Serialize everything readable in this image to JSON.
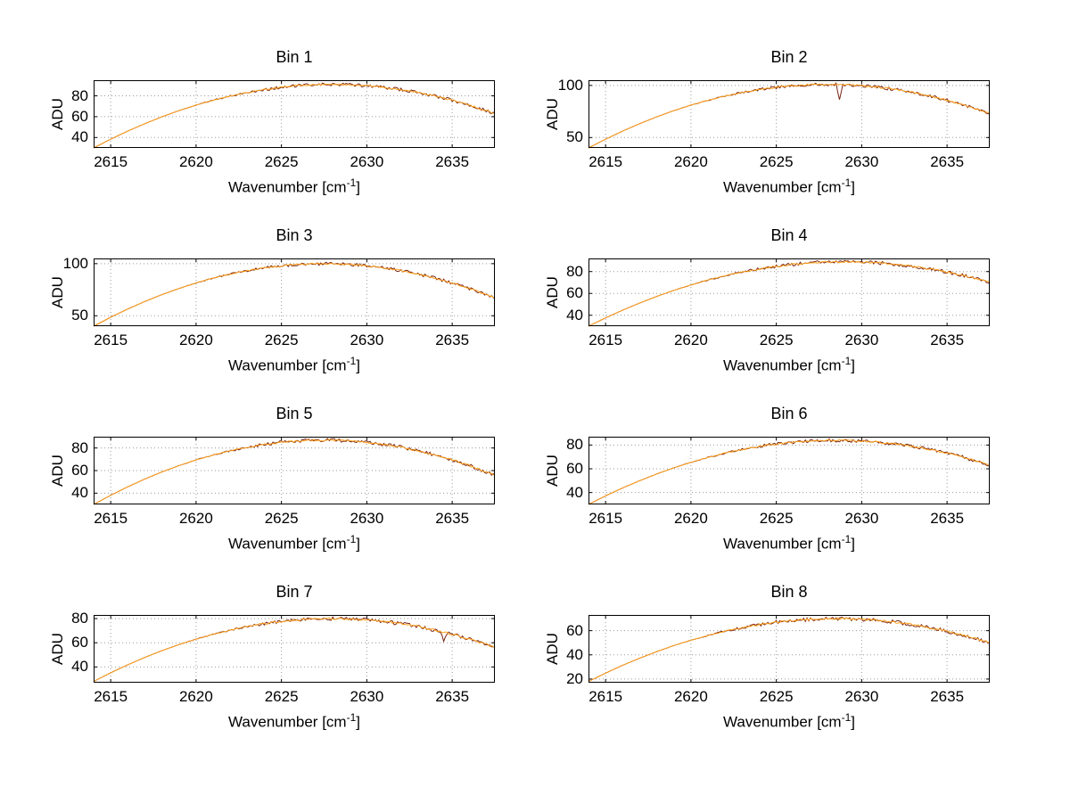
{
  "figure": {
    "background": "#ffffff",
    "line_color": "#FFA21A",
    "noise_color": "#7A2414",
    "grid_color": "#9A9A9A",
    "axis_color": "#000000",
    "xlabel_pre": "Wavenumber [cm",
    "xlabel_sup": "-1",
    "xlabel_post": "]"
  },
  "chart_data": [
    {
      "type": "line",
      "title": "Bin 1",
      "xlabel": "Wavenumber [cm^-1]",
      "ylabel": "ADU",
      "xlim": [
        2614,
        2637.5
      ],
      "ylim": [
        30,
        95
      ],
      "xticks": [
        2615,
        2620,
        2625,
        2630,
        2635
      ],
      "yticks": [
        40,
        60,
        80
      ],
      "x": [
        2614,
        2615,
        2616,
        2617,
        2618,
        2619,
        2620,
        2621,
        2622,
        2623,
        2624,
        2625,
        2626,
        2627,
        2628,
        2629,
        2630,
        2631,
        2632,
        2633,
        2634,
        2635,
        2636,
        2637,
        2637.5
      ],
      "y": [
        30,
        38.4,
        46.2,
        53.3,
        59.9,
        65.8,
        71.1,
        75.8,
        79.8,
        83.2,
        86,
        88.2,
        89.8,
        90.7,
        91,
        90.7,
        89.8,
        88.2,
        86,
        83.2,
        79.8,
        75.8,
        71.1,
        65.8,
        62.9
      ],
      "spikes": []
    },
    {
      "type": "line",
      "title": "Bin 2",
      "xlabel": "Wavenumber [cm^-1]",
      "ylabel": "ADU",
      "xlim": [
        2614,
        2637.5
      ],
      "ylim": [
        40,
        105
      ],
      "xticks": [
        2615,
        2620,
        2625,
        2630,
        2635
      ],
      "yticks": [
        50,
        100
      ],
      "x": [
        2614,
        2615,
        2616,
        2617,
        2618,
        2619,
        2620,
        2621,
        2622,
        2623,
        2624,
        2625,
        2626,
        2627,
        2628,
        2629,
        2630,
        2631,
        2632,
        2633,
        2634,
        2635,
        2636,
        2637,
        2637.5
      ],
      "y": [
        40,
        48.4,
        56.2,
        63.3,
        69.9,
        75.8,
        81.1,
        85.7,
        89.8,
        93.2,
        96,
        98.2,
        99.8,
        100.7,
        101,
        100.7,
        99.8,
        98.2,
        96,
        93.2,
        89.8,
        85.7,
        81.1,
        75.8,
        72.9
      ],
      "spikes": [
        {
          "x": 2628.7,
          "dy": -13,
          "w": 0.2
        }
      ]
    },
    {
      "type": "line",
      "title": "Bin 3",
      "xlabel": "Wavenumber [cm^-1]",
      "ylabel": "ADU",
      "xlim": [
        2614,
        2637.5
      ],
      "ylim": [
        40,
        105
      ],
      "xticks": [
        2615,
        2620,
        2625,
        2630,
        2635
      ],
      "yticks": [
        50,
        100
      ],
      "x": [
        2614,
        2615,
        2616,
        2617,
        2618,
        2619,
        2620,
        2621,
        2622,
        2623,
        2624,
        2625,
        2626,
        2627,
        2628,
        2629,
        2630,
        2631,
        2632,
        2633,
        2634,
        2635,
        2636,
        2637,
        2637.5
      ],
      "y": [
        40,
        48.6,
        56.5,
        63.7,
        70.3,
        76.2,
        81.5,
        86.1,
        90,
        93.3,
        96,
        97.9,
        99.3,
        99.9,
        99.9,
        99.3,
        97.9,
        96,
        93.3,
        90,
        86.1,
        81.5,
        76.2,
        70.3,
        67.1
      ],
      "spikes": []
    },
    {
      "type": "line",
      "title": "Bin 4",
      "xlabel": "Wavenumber [cm^-1]",
      "ylabel": "ADU",
      "xlim": [
        2614,
        2637.5
      ],
      "ylim": [
        30,
        92
      ],
      "xticks": [
        2615,
        2620,
        2625,
        2630,
        2635
      ],
      "yticks": [
        40,
        60,
        80
      ],
      "x": [
        2614,
        2615,
        2616,
        2617,
        2618,
        2619,
        2620,
        2621,
        2622,
        2623,
        2624,
        2625,
        2626,
        2627,
        2628,
        2629,
        2630,
        2631,
        2632,
        2633,
        2634,
        2635,
        2636,
        2637,
        2637.5
      ],
      "y": [
        30,
        37.6,
        44.7,
        51.2,
        57.3,
        62.8,
        67.8,
        72.2,
        76.2,
        79.6,
        82.4,
        84.8,
        86.6,
        88,
        88.7,
        89,
        88.7,
        88,
        86.6,
        84.8,
        82.4,
        79.6,
        76.2,
        72.2,
        70.1
      ],
      "spikes": []
    },
    {
      "type": "line",
      "title": "Bin 5",
      "xlabel": "Wavenumber [cm^-1]",
      "ylabel": "ADU",
      "xlim": [
        2614,
        2637.5
      ],
      "ylim": [
        30,
        90
      ],
      "xticks": [
        2615,
        2620,
        2625,
        2630,
        2635
      ],
      "yticks": [
        40,
        60,
        80
      ],
      "x": [
        2614,
        2615,
        2616,
        2617,
        2618,
        2619,
        2620,
        2621,
        2622,
        2623,
        2624,
        2625,
        2626,
        2627,
        2628,
        2629,
        2630,
        2631,
        2632,
        2633,
        2634,
        2635,
        2636,
        2637,
        2637.5
      ],
      "y": [
        30,
        38.1,
        45.6,
        52.5,
        58.8,
        64.4,
        69.4,
        73.8,
        77.5,
        80.7,
        83.2,
        85,
        86.3,
        86.9,
        86.9,
        86.3,
        85,
        83.2,
        80.7,
        77.5,
        73.8,
        69.4,
        64.4,
        58.8,
        55.7
      ],
      "spikes": []
    },
    {
      "type": "line",
      "title": "Bin 6",
      "xlabel": "Wavenumber [cm^-1]",
      "ylabel": "ADU",
      "xlim": [
        2614,
        2637.5
      ],
      "ylim": [
        30,
        87
      ],
      "xticks": [
        2615,
        2620,
        2625,
        2630,
        2635
      ],
      "yticks": [
        40,
        60,
        80
      ],
      "x": [
        2614,
        2615,
        2616,
        2617,
        2618,
        2619,
        2620,
        2621,
        2622,
        2623,
        2624,
        2625,
        2626,
        2627,
        2628,
        2629,
        2630,
        2631,
        2632,
        2633,
        2634,
        2635,
        2636,
        2637,
        2637.5
      ],
      "y": [
        30,
        37.2,
        43.9,
        50,
        55.7,
        60.8,
        65.4,
        69.6,
        73.2,
        76.2,
        78.8,
        80.9,
        82.4,
        83.4,
        83.9,
        83.9,
        83.4,
        82.4,
        80.9,
        78.8,
        76.2,
        73.2,
        69.6,
        65.4,
        63.2
      ],
      "spikes": []
    },
    {
      "type": "line",
      "title": "Bin 7",
      "xlabel": "Wavenumber [cm^-1]",
      "ylabel": "ADU",
      "xlim": [
        2614,
        2637.5
      ],
      "ylim": [
        27,
        83
      ],
      "xticks": [
        2615,
        2620,
        2625,
        2630,
        2635
      ],
      "yticks": [
        40,
        60,
        80
      ],
      "x": [
        2614,
        2615,
        2616,
        2617,
        2618,
        2619,
        2620,
        2621,
        2622,
        2623,
        2624,
        2625,
        2626,
        2627,
        2628,
        2629,
        2630,
        2631,
        2632,
        2633,
        2634,
        2635,
        2636,
        2637,
        2637.5
      ],
      "y": [
        28,
        35.2,
        41.8,
        47.9,
        53.5,
        58.5,
        63,
        67,
        70.4,
        73.4,
        75.8,
        77.6,
        78.9,
        79.7,
        80,
        79.7,
        78.9,
        77.6,
        75.8,
        73.4,
        70.4,
        67,
        63,
        58.5,
        56.1
      ],
      "spikes": [
        {
          "x": 2634.5,
          "dy": -8,
          "w": 0.2
        }
      ]
    },
    {
      "type": "line",
      "title": "Bin 8",
      "xlabel": "Wavenumber [cm^-1]",
      "ylabel": "ADU",
      "xlim": [
        2614,
        2637.5
      ],
      "ylim": [
        17,
        73
      ],
      "xticks": [
        2615,
        2620,
        2625,
        2630,
        2635
      ],
      "yticks": [
        20,
        40,
        60
      ],
      "x": [
        2614,
        2615,
        2616,
        2617,
        2618,
        2619,
        2620,
        2621,
        2622,
        2623,
        2624,
        2625,
        2626,
        2627,
        2628,
        2629,
        2630,
        2631,
        2632,
        2633,
        2634,
        2635,
        2636,
        2637,
        2637.5
      ],
      "y": [
        18,
        24.9,
        31.4,
        37.3,
        42.7,
        47.7,
        52.1,
        56.1,
        59.6,
        62.5,
        65,
        67,
        68.5,
        69.4,
        69.9,
        69.9,
        69.4,
        68.5,
        67,
        65,
        62.5,
        59.6,
        56.1,
        52.1,
        50
      ],
      "spikes": []
    }
  ]
}
